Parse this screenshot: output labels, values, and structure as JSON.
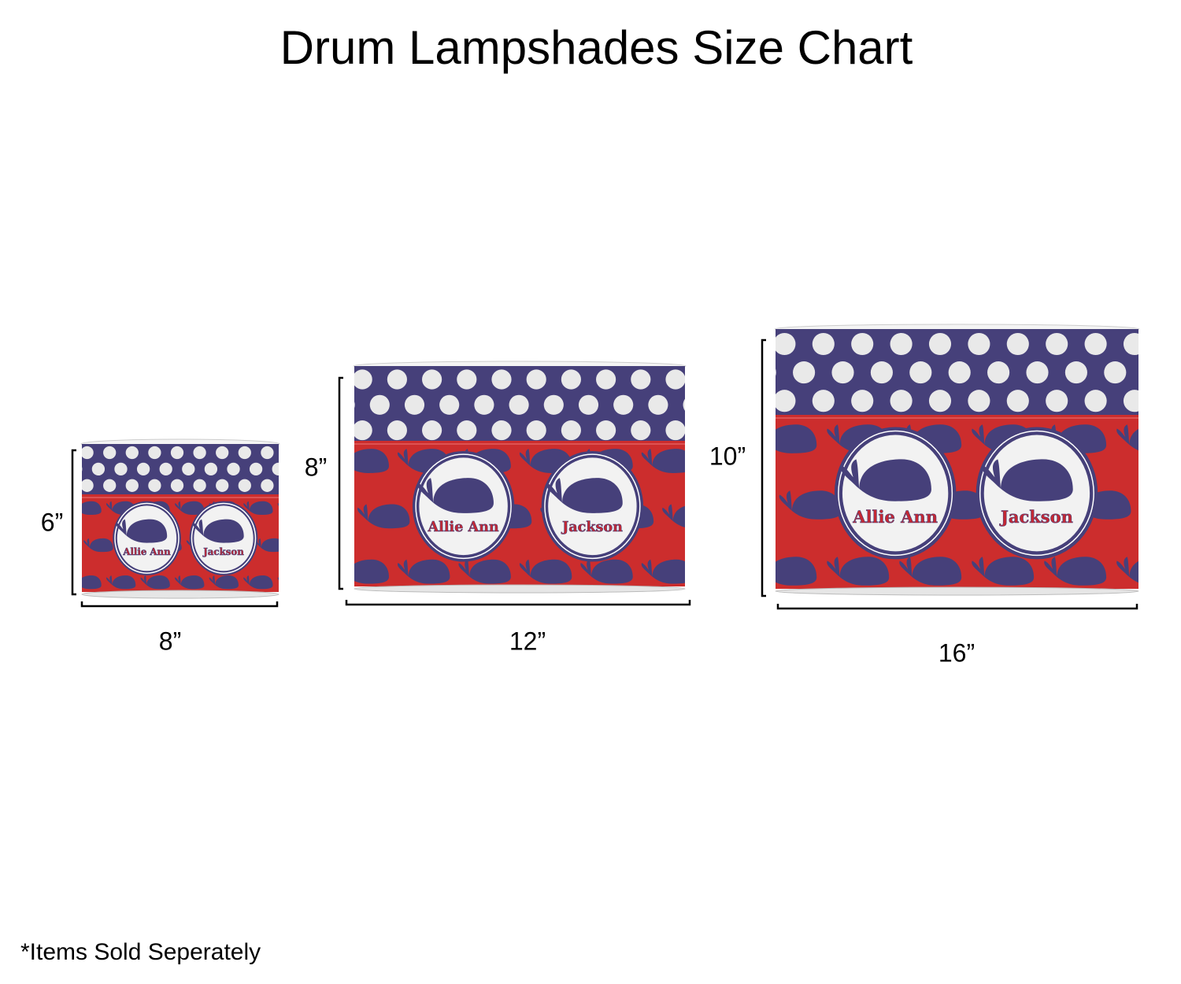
{
  "title": "Drum Lampshades Size Chart",
  "colors": {
    "navy": "#46407a",
    "red": "#cc2d2d",
    "dot": "#e9e9e9",
    "medallion": "#f2f2f2"
  },
  "shades": [
    {
      "size": "small",
      "height_label": "6”",
      "width_label": "8”",
      "names": [
        "Allie Ann",
        "Jackson"
      ]
    },
    {
      "size": "medium",
      "height_label": "8”",
      "width_label": "12”",
      "names": [
        "Allie Ann",
        "Jackson"
      ]
    },
    {
      "size": "large",
      "height_label": "10”",
      "width_label": "16”",
      "names": [
        "Allie Ann",
        "Jackson"
      ]
    }
  ],
  "footnote": "*Items Sold Seperately"
}
